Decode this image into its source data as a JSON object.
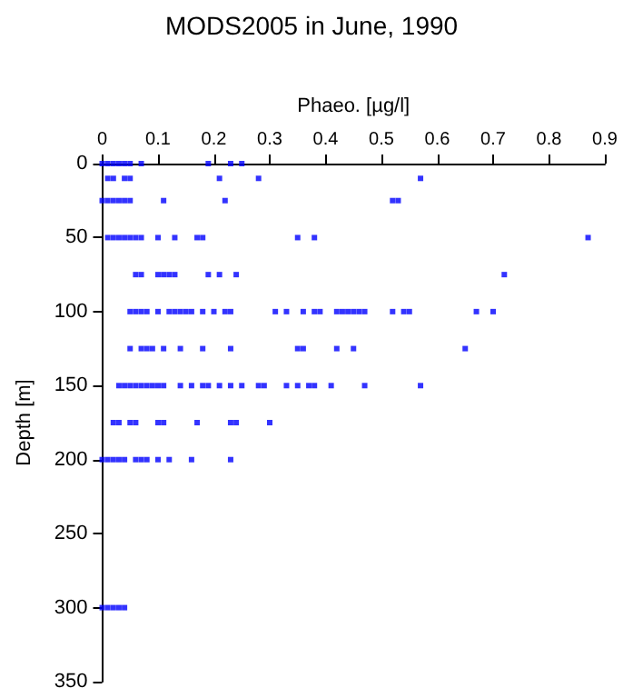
{
  "chart_data": {
    "type": "scatter",
    "title": "MODS2005 in June, 1990",
    "xlabel": "Phaeo. [µg/l]",
    "ylabel": "Depth [m]",
    "xlim": [
      0,
      0.9
    ],
    "xticks": [
      0,
      0.1,
      0.2,
      0.3,
      0.4,
      0.5,
      0.6,
      0.7,
      0.8,
      0.9
    ],
    "ylim": [
      350,
      0
    ],
    "yticks": [
      0,
      50,
      100,
      150,
      200,
      250,
      300,
      350
    ],
    "marker": "square",
    "series": [
      {
        "color": "#0000ff",
        "x": [
          0,
          0.01,
          0.02,
          0.03,
          0.04,
          0.05,
          0.07,
          0.19,
          0.23,
          0.25,
          0.01,
          0.02,
          0.04,
          0.05,
          0.21,
          0.28,
          0.57,
          0,
          0.01,
          0.02,
          0.03,
          0.04,
          0.05,
          0.11,
          0.22,
          0.52,
          0.53,
          0.01,
          0.02,
          0.03,
          0.04,
          0.05,
          0.06,
          0.07,
          0.1,
          0.13,
          0.17,
          0.18,
          0.35,
          0.38,
          0.87,
          0.06,
          0.07,
          0.1,
          0.11,
          0.12,
          0.13,
          0.19,
          0.21,
          0.24,
          0.72,
          0.05,
          0.06,
          0.07,
          0.08,
          0.1,
          0.12,
          0.13,
          0.14,
          0.15,
          0.16,
          0.18,
          0.2,
          0.22,
          0.23,
          0.31,
          0.33,
          0.36,
          0.38,
          0.39,
          0.42,
          0.43,
          0.44,
          0.45,
          0.46,
          0.47,
          0.52,
          0.54,
          0.55,
          0.67,
          0.7,
          0.05,
          0.07,
          0.08,
          0.09,
          0.11,
          0.14,
          0.18,
          0.23,
          0.35,
          0.36,
          0.42,
          0.45,
          0.65,
          0.03,
          0.04,
          0.05,
          0.06,
          0.07,
          0.08,
          0.09,
          0.1,
          0.11,
          0.14,
          0.16,
          0.18,
          0.19,
          0.21,
          0.23,
          0.25,
          0.28,
          0.29,
          0.33,
          0.35,
          0.37,
          0.38,
          0.41,
          0.47,
          0.57,
          0.02,
          0.03,
          0.05,
          0.06,
          0.1,
          0.11,
          0.17,
          0.23,
          0.24,
          0.3,
          0,
          0.01,
          0.02,
          0.03,
          0.04,
          0.06,
          0.07,
          0.08,
          0.1,
          0.12,
          0.16,
          0.23,
          0,
          0.01,
          0.02,
          0.03,
          0.04
        ],
        "values": [
          0,
          0,
          0,
          0,
          0,
          0,
          0,
          0,
          0,
          0,
          10,
          10,
          10,
          10,
          10,
          10,
          10,
          25,
          25,
          25,
          25,
          25,
          25,
          25,
          25,
          25,
          25,
          50,
          50,
          50,
          50,
          50,
          50,
          50,
          50,
          50,
          50,
          50,
          50,
          50,
          50,
          75,
          75,
          75,
          75,
          75,
          75,
          75,
          75,
          75,
          75,
          100,
          100,
          100,
          100,
          100,
          100,
          100,
          100,
          100,
          100,
          100,
          100,
          100,
          100,
          100,
          100,
          100,
          100,
          100,
          100,
          100,
          100,
          100,
          100,
          100,
          100,
          100,
          100,
          100,
          100,
          125,
          125,
          125,
          125,
          125,
          125,
          125,
          125,
          125,
          125,
          125,
          125,
          125,
          150,
          150,
          150,
          150,
          150,
          150,
          150,
          150,
          150,
          150,
          150,
          150,
          150,
          150,
          150,
          150,
          150,
          150,
          150,
          150,
          150,
          150,
          150,
          150,
          150,
          175,
          175,
          175,
          175,
          175,
          175,
          175,
          175,
          175,
          175,
          200,
          200,
          200,
          200,
          200,
          200,
          200,
          200,
          200,
          200,
          200,
          200,
          300,
          300,
          300,
          300,
          300
        ]
      }
    ]
  }
}
